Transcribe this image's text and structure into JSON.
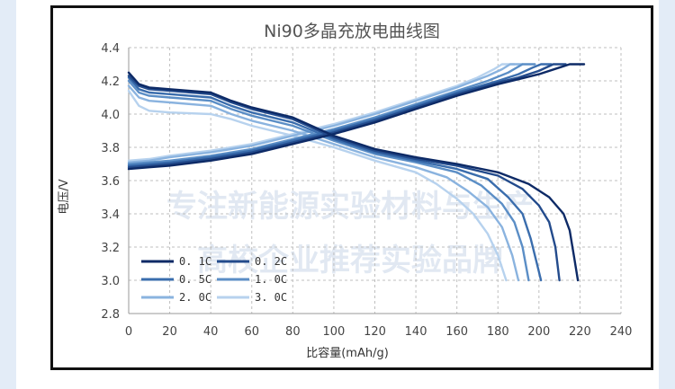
{
  "chart_data": {
    "type": "line",
    "title": "Ni90多晶充放电曲线图",
    "xlabel": "比容量(mAh/g)",
    "ylabel": "电压/V",
    "xlim": [
      0,
      240
    ],
    "ylim": [
      2.8,
      4.4
    ],
    "xticks": [
      0,
      20,
      40,
      60,
      80,
      100,
      120,
      140,
      160,
      180,
      200,
      220,
      240
    ],
    "yticks": [
      2.8,
      3.0,
      3.2,
      3.4,
      3.6,
      3.8,
      4.0,
      4.2,
      4.4
    ],
    "xtick_labels": [
      "0",
      "20",
      "40",
      "60",
      "80",
      "100",
      "120",
      "140",
      "160",
      "180",
      "200",
      "220",
      "240"
    ],
    "ytick_labels": [
      "2.8",
      "3.0",
      "3.2",
      "3.4",
      "3.6",
      "3.8",
      "4.0",
      "4.2",
      "4.4"
    ],
    "grid": "dashed",
    "legend_position": "bottom-left",
    "watermark": [
      "专注新能源实验材料与生产",
      "高校企业推荐实验品牌"
    ],
    "series": [
      {
        "name": "0. 1C",
        "color": "#0d2a66",
        "charge": [
          [
            0,
            3.67
          ],
          [
            10,
            3.68
          ],
          [
            20,
            3.69
          ],
          [
            40,
            3.72
          ],
          [
            60,
            3.76
          ],
          [
            80,
            3.82
          ],
          [
            100,
            3.88
          ],
          [
            120,
            3.95
          ],
          [
            140,
            4.03
          ],
          [
            160,
            4.11
          ],
          [
            180,
            4.18
          ],
          [
            190,
            4.21
          ],
          [
            200,
            4.24
          ],
          [
            210,
            4.28
          ],
          [
            215,
            4.3
          ],
          [
            222,
            4.3
          ]
        ],
        "discharge": [
          [
            0,
            4.25
          ],
          [
            5,
            4.18
          ],
          [
            10,
            4.16
          ],
          [
            20,
            4.15
          ],
          [
            40,
            4.13
          ],
          [
            50,
            4.08
          ],
          [
            60,
            4.04
          ],
          [
            80,
            3.98
          ],
          [
            100,
            3.87
          ],
          [
            120,
            3.79
          ],
          [
            140,
            3.74
          ],
          [
            160,
            3.7
          ],
          [
            180,
            3.65
          ],
          [
            195,
            3.58
          ],
          [
            205,
            3.5
          ],
          [
            212,
            3.4
          ],
          [
            215,
            3.3
          ],
          [
            217,
            3.15
          ],
          [
            219,
            3.0
          ]
        ]
      },
      {
        "name": "0. 2C",
        "color": "#234b8c",
        "charge": [
          [
            0,
            3.68
          ],
          [
            10,
            3.69
          ],
          [
            20,
            3.7
          ],
          [
            40,
            3.73
          ],
          [
            60,
            3.77
          ],
          [
            80,
            3.83
          ],
          [
            100,
            3.89
          ],
          [
            120,
            3.96
          ],
          [
            140,
            4.04
          ],
          [
            160,
            4.12
          ],
          [
            180,
            4.19
          ],
          [
            190,
            4.22
          ],
          [
            200,
            4.26
          ],
          [
            207,
            4.3
          ],
          [
            213,
            4.3
          ]
        ],
        "discharge": [
          [
            0,
            4.23
          ],
          [
            5,
            4.17
          ],
          [
            10,
            4.15
          ],
          [
            20,
            4.14
          ],
          [
            40,
            4.12
          ],
          [
            50,
            4.07
          ],
          [
            60,
            4.03
          ],
          [
            80,
            3.97
          ],
          [
            100,
            3.86
          ],
          [
            120,
            3.78
          ],
          [
            140,
            3.73
          ],
          [
            160,
            3.69
          ],
          [
            180,
            3.63
          ],
          [
            192,
            3.55
          ],
          [
            200,
            3.45
          ],
          [
            205,
            3.35
          ],
          [
            208,
            3.2
          ],
          [
            210,
            3.0
          ]
        ]
      },
      {
        "name": "0. 5C",
        "color": "#3a6dad",
        "charge": [
          [
            0,
            3.69
          ],
          [
            10,
            3.7
          ],
          [
            20,
            3.71
          ],
          [
            40,
            3.74
          ],
          [
            60,
            3.78
          ],
          [
            80,
            3.84
          ],
          [
            100,
            3.9
          ],
          [
            120,
            3.97
          ],
          [
            140,
            4.05
          ],
          [
            160,
            4.13
          ],
          [
            180,
            4.2
          ],
          [
            190,
            4.24
          ],
          [
            197,
            4.28
          ],
          [
            201,
            4.3
          ],
          [
            206,
            4.3
          ]
        ],
        "discharge": [
          [
            0,
            4.22
          ],
          [
            5,
            4.15
          ],
          [
            10,
            4.13
          ],
          [
            20,
            4.12
          ],
          [
            40,
            4.1
          ],
          [
            50,
            4.05
          ],
          [
            60,
            4.01
          ],
          [
            80,
            3.95
          ],
          [
            100,
            3.85
          ],
          [
            120,
            3.77
          ],
          [
            140,
            3.72
          ],
          [
            160,
            3.67
          ],
          [
            175,
            3.61
          ],
          [
            185,
            3.5
          ],
          [
            192,
            3.4
          ],
          [
            196,
            3.25
          ],
          [
            199,
            3.1
          ],
          [
            201,
            3.0
          ]
        ]
      },
      {
        "name": "1. 0C",
        "color": "#5b8ec6",
        "charge": [
          [
            0,
            3.7
          ],
          [
            10,
            3.71
          ],
          [
            20,
            3.72
          ],
          [
            40,
            3.75
          ],
          [
            60,
            3.79
          ],
          [
            80,
            3.85
          ],
          [
            100,
            3.91
          ],
          [
            120,
            3.98
          ],
          [
            140,
            4.06
          ],
          [
            160,
            4.14
          ],
          [
            175,
            4.2
          ],
          [
            185,
            4.25
          ],
          [
            192,
            4.3
          ],
          [
            198,
            4.3
          ]
        ],
        "discharge": [
          [
            0,
            4.2
          ],
          [
            5,
            4.13
          ],
          [
            10,
            4.11
          ],
          [
            20,
            4.1
          ],
          [
            40,
            4.08
          ],
          [
            50,
            4.03
          ],
          [
            60,
            3.99
          ],
          [
            80,
            3.93
          ],
          [
            100,
            3.84
          ],
          [
            120,
            3.76
          ],
          [
            140,
            3.71
          ],
          [
            160,
            3.65
          ],
          [
            172,
            3.57
          ],
          [
            182,
            3.46
          ],
          [
            188,
            3.35
          ],
          [
            192,
            3.2
          ],
          [
            195,
            3.0
          ]
        ]
      },
      {
        "name": "2. 0C",
        "color": "#8ab3df",
        "charge": [
          [
            0,
            3.71
          ],
          [
            10,
            3.72
          ],
          [
            20,
            3.74
          ],
          [
            40,
            3.77
          ],
          [
            60,
            3.81
          ],
          [
            80,
            3.87
          ],
          [
            100,
            3.93
          ],
          [
            120,
            4.0
          ],
          [
            140,
            4.08
          ],
          [
            160,
            4.16
          ],
          [
            175,
            4.23
          ],
          [
            182,
            4.27
          ],
          [
            186,
            4.3
          ],
          [
            192,
            4.3
          ]
        ],
        "discharge": [
          [
            0,
            4.17
          ],
          [
            5,
            4.1
          ],
          [
            10,
            4.08
          ],
          [
            20,
            4.07
          ],
          [
            40,
            4.05
          ],
          [
            50,
            4.0
          ],
          [
            60,
            3.96
          ],
          [
            80,
            3.9
          ],
          [
            100,
            3.82
          ],
          [
            120,
            3.74
          ],
          [
            140,
            3.68
          ],
          [
            155,
            3.62
          ],
          [
            165,
            3.54
          ],
          [
            175,
            3.44
          ],
          [
            182,
            3.32
          ],
          [
            187,
            3.15
          ],
          [
            190,
            3.0
          ]
        ]
      },
      {
        "name": "3. 0C",
        "color": "#b7d2ee",
        "charge": [
          [
            0,
            3.72
          ],
          [
            10,
            3.73
          ],
          [
            20,
            3.75
          ],
          [
            40,
            3.78
          ],
          [
            60,
            3.82
          ],
          [
            80,
            3.88
          ],
          [
            100,
            3.94
          ],
          [
            120,
            4.01
          ],
          [
            140,
            4.09
          ],
          [
            160,
            4.17
          ],
          [
            170,
            4.22
          ],
          [
            178,
            4.27
          ],
          [
            182,
            4.3
          ],
          [
            188,
            4.3
          ]
        ],
        "discharge": [
          [
            0,
            4.14
          ],
          [
            5,
            4.05
          ],
          [
            10,
            4.02
          ],
          [
            20,
            4.01
          ],
          [
            40,
            4.0
          ],
          [
            50,
            3.97
          ],
          [
            60,
            3.93
          ],
          [
            80,
            3.87
          ],
          [
            100,
            3.8
          ],
          [
            120,
            3.72
          ],
          [
            140,
            3.65
          ],
          [
            150,
            3.58
          ],
          [
            160,
            3.49
          ],
          [
            168,
            3.4
          ],
          [
            175,
            3.28
          ],
          [
            180,
            3.15
          ],
          [
            184,
            3.0
          ]
        ]
      }
    ]
  }
}
